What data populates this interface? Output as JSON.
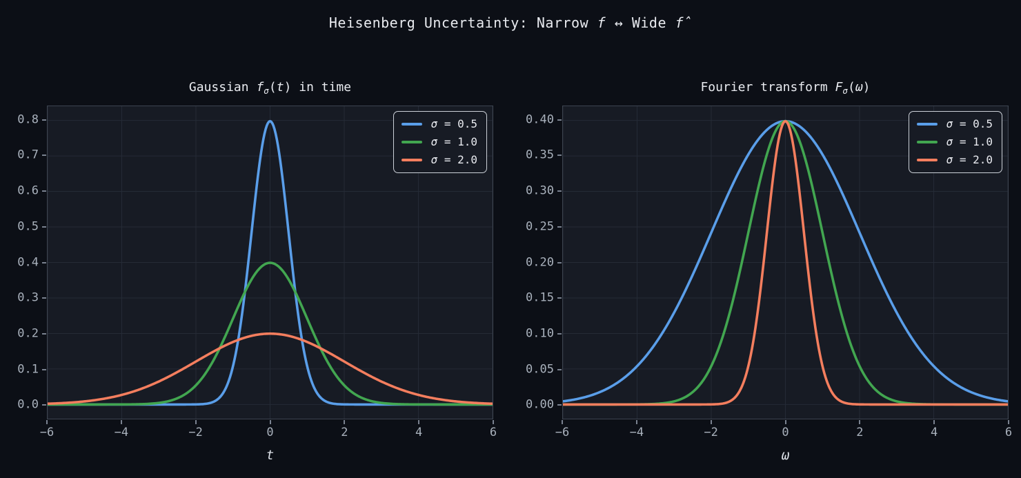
{
  "figure": {
    "title_text": "Heisenberg Uncertainty: Narrow f ↔ Wide f̂",
    "title_segments": [
      {
        "t": "Heisenberg Uncertainty: Narrow ",
        "i": false
      },
      {
        "t": "f",
        "i": true
      },
      {
        "t": " ↔ Wide ",
        "i": false
      },
      {
        "t": "f̂",
        "i": true
      }
    ],
    "colors": {
      "figure_background": "#0c0f16",
      "axes_background": "#171b24",
      "grid": "#252b36",
      "spine": "#3d4450",
      "tick_mark": "#7a8290",
      "tick_label": "#a9b1bc",
      "text": "#e9ebf0",
      "legend_border": "#cdd2d9"
    }
  },
  "chart_data": [
    {
      "type": "line",
      "model": "gaussian_pdf",
      "title_text": "Gaussian fσ(t) in time",
      "title_segments": [
        {
          "t": "Gaussian ",
          "i": false
        },
        {
          "t": "f",
          "i": true
        },
        {
          "t": "σ",
          "i": true,
          "sub": true
        },
        {
          "t": "(",
          "i": false
        },
        {
          "t": "t",
          "i": true
        },
        {
          "t": ") in time",
          "i": false
        }
      ],
      "xlabel": "t",
      "xlim": [
        -6,
        6
      ],
      "ylim": [
        -0.04,
        0.84
      ],
      "grid": true,
      "legend_position": "upper right",
      "xtick_values": [
        -6,
        -4,
        -2,
        0,
        2,
        4,
        6
      ],
      "xtick_labels": [
        "−6",
        "−4",
        "−2",
        "0",
        "2",
        "4",
        "6"
      ],
      "ytick_values": [
        0.0,
        0.1,
        0.2,
        0.3,
        0.4,
        0.5,
        0.6,
        0.7,
        0.8
      ],
      "ytick_labels": [
        "0.0",
        "0.1",
        "0.2",
        "0.3",
        "0.4",
        "0.5",
        "0.6",
        "0.7",
        "0.8"
      ],
      "sample_x": [
        -6,
        -5.5,
        -5,
        -4.5,
        -4,
        -3.5,
        -3,
        -2.5,
        -2,
        -1.5,
        -1,
        -0.5,
        0,
        0.5,
        1,
        1.5,
        2,
        2.5,
        3,
        3.5,
        4,
        4.5,
        5,
        5.5,
        6
      ],
      "series": [
        {
          "name": "σ = 0.5",
          "sigma": 0.5,
          "color": "#5a9ee9",
          "peak_y": 0.7979,
          "sample_y": [
            0,
            0,
            0,
            0,
            0,
            0,
            0,
            0,
            0.0003,
            0.0089,
            0.108,
            0.4839,
            0.7979,
            0.4839,
            0.108,
            0.0089,
            0.0003,
            0,
            0,
            0,
            0,
            0,
            0,
            0,
            0
          ]
        },
        {
          "name": "σ = 1.0",
          "sigma": 1.0,
          "color": "#42a650",
          "peak_y": 0.3989,
          "sample_y": [
            0,
            0,
            0,
            0,
            0.0001,
            0.0009,
            0.0044,
            0.0175,
            0.054,
            0.1295,
            0.242,
            0.3521,
            0.3989,
            0.3521,
            0.242,
            0.1295,
            0.054,
            0.0175,
            0.0044,
            0.0009,
            0.0001,
            0,
            0,
            0,
            0
          ]
        },
        {
          "name": "σ = 2.0",
          "sigma": 2.0,
          "color": "#f47e5e",
          "peak_y": 0.1995,
          "sample_y": [
            0.0022,
            0.0046,
            0.0088,
            0.0159,
            0.027,
            0.0431,
            0.0648,
            0.0913,
            0.121,
            0.1506,
            0.176,
            0.1933,
            0.1995,
            0.1933,
            0.176,
            0.1506,
            0.121,
            0.0913,
            0.0648,
            0.0431,
            0.027,
            0.0159,
            0.0088,
            0.0046,
            0.0022
          ]
        }
      ]
    },
    {
      "type": "line",
      "model": "gaussian_fourier",
      "title_text": "Fourier transform Fσ(ω)",
      "title_segments": [
        {
          "t": "Fourier transform ",
          "i": false
        },
        {
          "t": "F",
          "i": true
        },
        {
          "t": "σ",
          "i": true,
          "sub": true
        },
        {
          "t": "(",
          "i": false
        },
        {
          "t": "ω",
          "i": true
        },
        {
          "t": ")",
          "i": false
        }
      ],
      "xlabel": "ω",
      "xlim": [
        -6,
        6
      ],
      "ylim": [
        -0.02,
        0.42
      ],
      "grid": true,
      "legend_position": "upper right",
      "xtick_values": [
        -6,
        -4,
        -2,
        0,
        2,
        4,
        6
      ],
      "xtick_labels": [
        "−6",
        "−4",
        "−2",
        "0",
        "2",
        "4",
        "6"
      ],
      "ytick_values": [
        0.0,
        0.05,
        0.1,
        0.15,
        0.2,
        0.25,
        0.3,
        0.35,
        0.4
      ],
      "ytick_labels": [
        "0.00",
        "0.05",
        "0.10",
        "0.15",
        "0.20",
        "0.25",
        "0.30",
        "0.35",
        "0.40"
      ],
      "sample_x": [
        -6,
        -5.5,
        -5,
        -4.5,
        -4,
        -3.5,
        -3,
        -2.5,
        -2,
        -1.5,
        -1,
        -0.5,
        0,
        0.5,
        1,
        1.5,
        2,
        2.5,
        3,
        3.5,
        4,
        4.5,
        5,
        5.5,
        6
      ],
      "series": [
        {
          "name": "σ = 0.5",
          "sigma": 0.5,
          "color": "#5a9ee9",
          "peak_y": 0.3989,
          "sample_y": [
            0.0044,
            0.0091,
            0.0175,
            0.0317,
            0.054,
            0.0862,
            0.1295,
            0.1826,
            0.242,
            0.3011,
            0.352,
            0.3866,
            0.3989,
            0.3866,
            0.352,
            0.3011,
            0.242,
            0.1826,
            0.1295,
            0.0862,
            0.054,
            0.0317,
            0.0175,
            0.0091,
            0.0044
          ]
        },
        {
          "name": "σ = 1.0",
          "sigma": 1.0,
          "color": "#42a650",
          "peak_y": 0.3989,
          "sample_y": [
            0,
            0,
            0,
            0,
            0.0001,
            0.0009,
            0.0044,
            0.0175,
            0.054,
            0.1295,
            0.242,
            0.3521,
            0.3989,
            0.3521,
            0.242,
            0.1295,
            0.054,
            0.0175,
            0.0044,
            0.0009,
            0.0001,
            0,
            0,
            0,
            0
          ]
        },
        {
          "name": "σ = 2.0",
          "sigma": 2.0,
          "color": "#f47e5e",
          "peak_y": 0.3989,
          "sample_y": [
            0,
            0,
            0,
            0,
            0,
            0,
            0,
            0,
            0.0001,
            0.0044,
            0.054,
            0.242,
            0.3989,
            0.242,
            0.054,
            0.0044,
            0.0001,
            0,
            0,
            0,
            0,
            0,
            0,
            0,
            0
          ]
        }
      ]
    }
  ]
}
